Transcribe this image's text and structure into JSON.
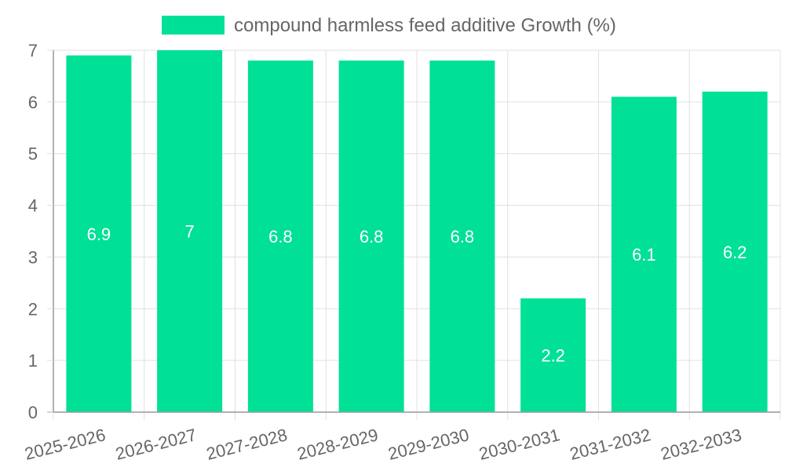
{
  "chart_data": {
    "type": "bar",
    "title": "",
    "xlabel": "",
    "ylabel": "",
    "categories": [
      "2025-2026",
      "2026-2027",
      "2027-2028",
      "2028-2029",
      "2029-2030",
      "2030-2031",
      "2031-2032",
      "2032-2033"
    ],
    "series": [
      {
        "name": "compound harmless feed additive Growth (%)",
        "values": [
          6.9,
          7,
          6.8,
          6.8,
          6.8,
          2.2,
          6.1,
          6.2
        ],
        "color": "#00e096"
      }
    ],
    "data_labels": [
      "6.9",
      "7",
      "6.8",
      "6.8",
      "6.8",
      "2.2",
      "6.1",
      "6.2"
    ],
    "ylim": [
      0,
      7
    ],
    "yticks": [
      "0",
      "1",
      "2",
      "3",
      "4",
      "5",
      "6",
      "7"
    ],
    "grid": true,
    "legend": "top-center"
  },
  "colors": {
    "bar": "#00e096",
    "grid": "#e0e0e0",
    "axis": "#999999",
    "text": "#666666",
    "label": "#ffffff"
  }
}
